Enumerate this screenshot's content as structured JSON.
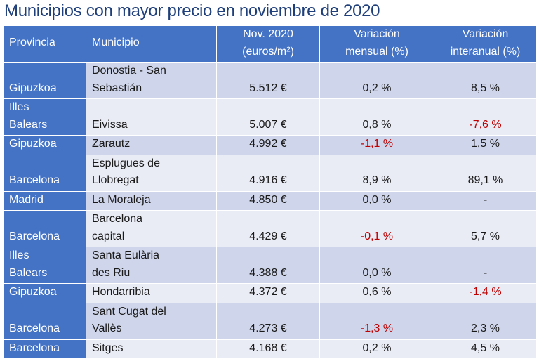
{
  "title": "Municipios con mayor precio en noviembre de 2020",
  "headers": {
    "provincia": "Provincia",
    "municipio": "Municipio",
    "precio_l1": "Nov. 2020",
    "precio_l2": "(euros/m²)",
    "mensual_l1": "Variación",
    "mensual_l2": "mensual (%)",
    "interanual_l1": "Variación",
    "interanual_l2": "interanual (%)"
  },
  "colors": {
    "header_blue": "#4472c4",
    "row_dark": "#cfd5ea",
    "row_light": "#e9ebf5",
    "negative_red": "#c00000",
    "title_blue": "#1f3f7a"
  },
  "rows": [
    {
      "provincia_l1": "",
      "provincia_l2": "Gipuzkoa",
      "municipio_l1": "Donostia - San",
      "municipio_l2": "Sebastián",
      "precio": "5.512 €",
      "mensual": "0,2 %",
      "interanual": "8,5 %",
      "mensual_neg": false,
      "interanual_neg": false
    },
    {
      "provincia_l1": "Illes",
      "provincia_l2": "Balears",
      "municipio_l1": "",
      "municipio_l2": "Eivissa",
      "precio": "5.007 €",
      "mensual": "0,8 %",
      "interanual": "-7,6 %",
      "mensual_neg": false,
      "interanual_neg": true
    },
    {
      "provincia_l1": "",
      "provincia_l2": "Gipuzkoa",
      "municipio_l1": "",
      "municipio_l2": "Zarautz",
      "precio": "4.992 €",
      "mensual": "-1,1 %",
      "interanual": "1,5 %",
      "mensual_neg": true,
      "interanual_neg": false
    },
    {
      "provincia_l1": "",
      "provincia_l2": "Barcelona",
      "municipio_l1": "Esplugues de",
      "municipio_l2": "Llobregat",
      "precio": "4.916 €",
      "mensual": "8,9 %",
      "interanual": "89,1 %",
      "mensual_neg": false,
      "interanual_neg": false
    },
    {
      "provincia_l1": "",
      "provincia_l2": "Madrid",
      "municipio_l1": "",
      "municipio_l2": "La Moraleja",
      "precio": "4.850 €",
      "mensual": "0,0 %",
      "interanual": "-",
      "mensual_neg": false,
      "interanual_neg": false
    },
    {
      "provincia_l1": "",
      "provincia_l2": "Barcelona",
      "municipio_l1": "Barcelona",
      "municipio_l2": "capital",
      "precio": "4.429 €",
      "mensual": "-0,1 %",
      "interanual": "5,7 %",
      "mensual_neg": true,
      "interanual_neg": false
    },
    {
      "provincia_l1": "Illes",
      "provincia_l2": "Balears",
      "municipio_l1": "Santa Eulària",
      "municipio_l2": "des Riu",
      "precio": "4.388 €",
      "mensual": "0,0 %",
      "interanual": "-",
      "mensual_neg": false,
      "interanual_neg": false
    },
    {
      "provincia_l1": "",
      "provincia_l2": "Gipuzkoa",
      "municipio_l1": "",
      "municipio_l2": "Hondarribia",
      "precio": "4.372 €",
      "mensual": "0,6 %",
      "interanual": "-1,4 %",
      "mensual_neg": false,
      "interanual_neg": true
    },
    {
      "provincia_l1": "",
      "provincia_l2": "Barcelona",
      "municipio_l1": "Sant Cugat del",
      "municipio_l2": "Vallès",
      "precio": "4.273 €",
      "mensual": "-1,3 %",
      "interanual": "2,3 %",
      "mensual_neg": true,
      "interanual_neg": false
    },
    {
      "provincia_l1": "",
      "provincia_l2": "Barcelona",
      "municipio_l1": "",
      "municipio_l2": "Sitges",
      "precio": "4.168 €",
      "mensual": "0,2 %",
      "interanual": "4,5 %",
      "mensual_neg": false,
      "interanual_neg": false
    }
  ]
}
